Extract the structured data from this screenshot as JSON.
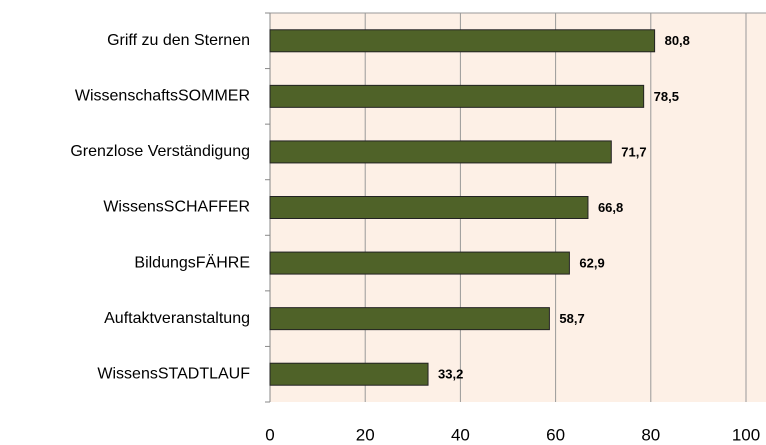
{
  "chart_data": {
    "type": "bar",
    "orientation": "horizontal",
    "categories": [
      "Griff zu den Sternen",
      "WissenschaftsSOMMER",
      "Grenzlose Verständigung",
      "WissensSCHAFFER",
      "BildungsFÄHRE",
      "Auftaktveranstaltung",
      "WissensSTADTLAUF"
    ],
    "values": [
      80.8,
      78.5,
      71.7,
      66.8,
      62.9,
      58.7,
      33.2
    ],
    "value_labels": [
      "80,8",
      "78,5",
      "71,7",
      "66,8",
      "62,9",
      "58,7",
      "33,2"
    ],
    "color": "#4f6228",
    "xlim": [
      0,
      100
    ],
    "xticks": [
      0,
      20,
      40,
      60,
      80,
      100
    ],
    "grid": true
  }
}
